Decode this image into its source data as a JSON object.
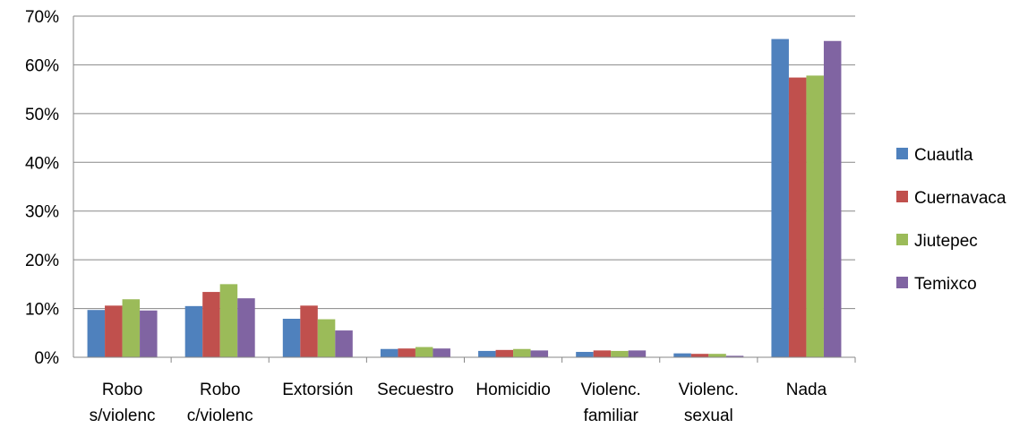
{
  "chart_data": {
    "type": "bar",
    "categories": [
      [
        "Robo",
        "s/violenc"
      ],
      [
        "Robo",
        "c/violenc"
      ],
      [
        "Extorsión"
      ],
      [
        "Secuestro"
      ],
      [
        "Homicidio"
      ],
      [
        "Violenc.",
        "familiar"
      ],
      [
        "Violenc.",
        "sexual"
      ],
      [
        "Nada"
      ]
    ],
    "series": [
      {
        "name": "Cuautla",
        "color": "#4f81bd",
        "values": [
          9.7,
          10.5,
          7.9,
          1.7,
          1.3,
          1.1,
          0.8,
          65.3
        ]
      },
      {
        "name": "Cuernavaca",
        "color": "#c0504d",
        "values": [
          10.6,
          13.4,
          10.6,
          1.8,
          1.5,
          1.4,
          0.7,
          57.4
        ]
      },
      {
        "name": "Jiutepec",
        "color": "#9bbb59",
        "values": [
          11.9,
          15.0,
          7.8,
          2.1,
          1.7,
          1.3,
          0.7,
          57.8
        ]
      },
      {
        "name": "Temixco",
        "color": "#8064a2",
        "values": [
          9.6,
          12.1,
          5.5,
          1.8,
          1.4,
          1.4,
          0.3,
          64.9
        ]
      }
    ],
    "yticks": [
      "0%",
      "10%",
      "20%",
      "30%",
      "40%",
      "50%",
      "60%",
      "70%"
    ],
    "ylim": [
      0,
      70
    ],
    "grid": true,
    "legend_position": "right"
  }
}
